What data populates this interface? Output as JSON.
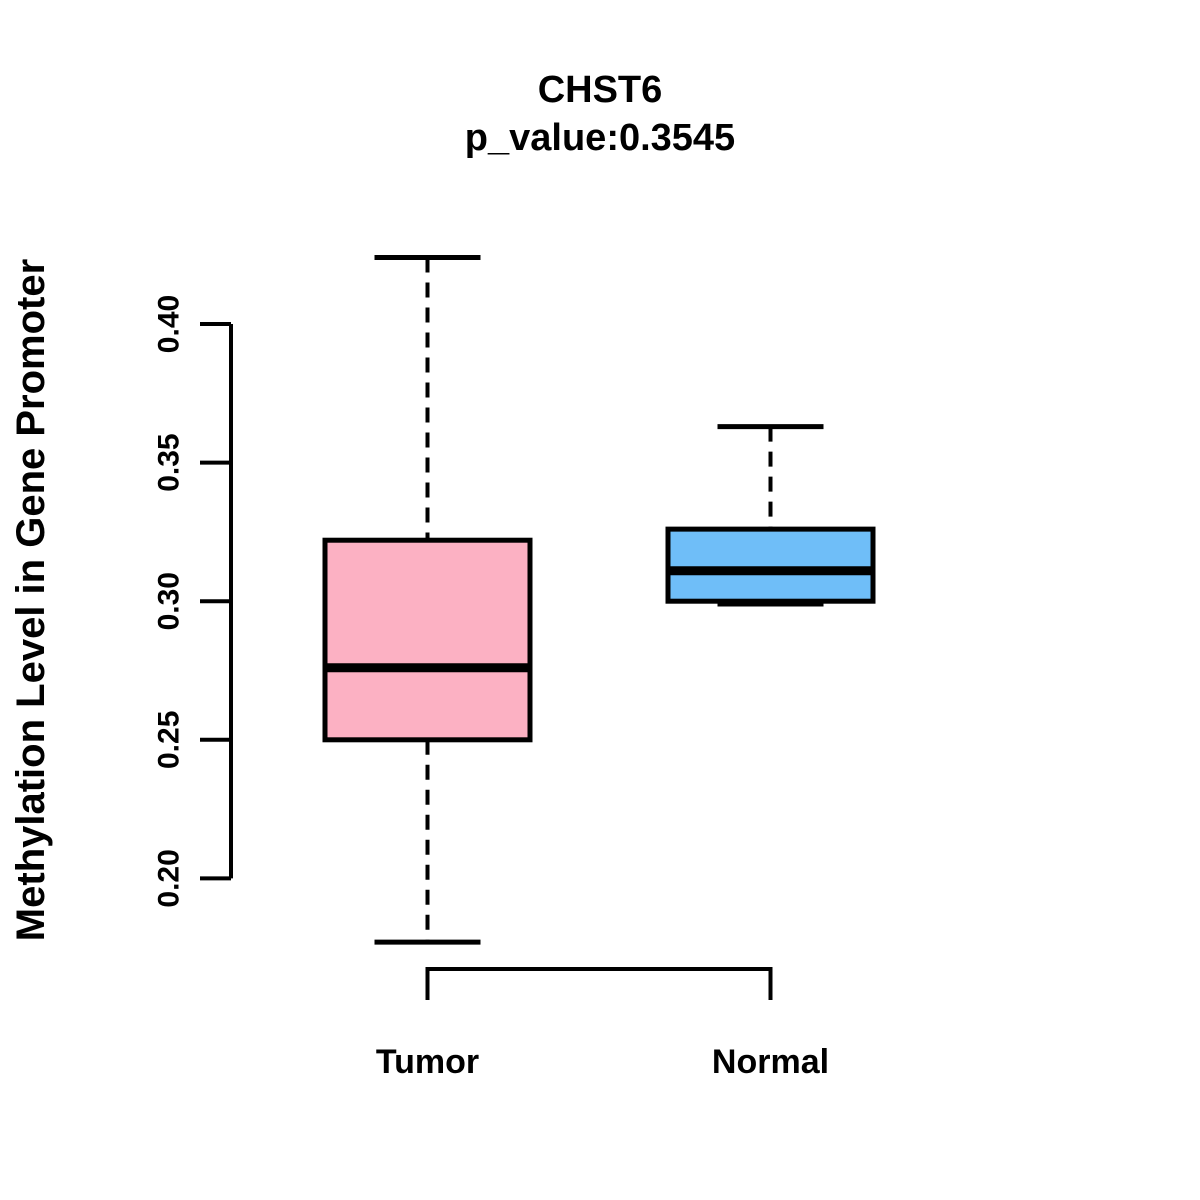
{
  "header": {
    "title": "CHST6",
    "subtitle": "p_value:0.3545"
  },
  "chart_data": {
    "type": "boxplot",
    "title": "CHST6",
    "subtitle": "p_value:0.3545",
    "xlabel": "",
    "ylabel": "Methylation Level in Gene Promoter",
    "ylim": [
      0.165,
      0.435
    ],
    "yticks": [
      "0.20",
      "0.25",
      "0.30",
      "0.35",
      "0.40"
    ],
    "grid": false,
    "legend": null,
    "categories": [
      "Tumor",
      "Normal"
    ],
    "series": [
      {
        "name": "Tumor",
        "lower_whisker": 0.177,
        "q1": 0.25,
        "median": 0.276,
        "q3": 0.322,
        "upper_whisker": 0.424,
        "fill": "#FCB1C3"
      },
      {
        "name": "Normal",
        "lower_whisker": 0.299,
        "q1": 0.3,
        "median": 0.311,
        "q3": 0.326,
        "upper_whisker": 0.363,
        "fill": "#6FBEF8"
      }
    ],
    "stroke_color": "#000000"
  }
}
